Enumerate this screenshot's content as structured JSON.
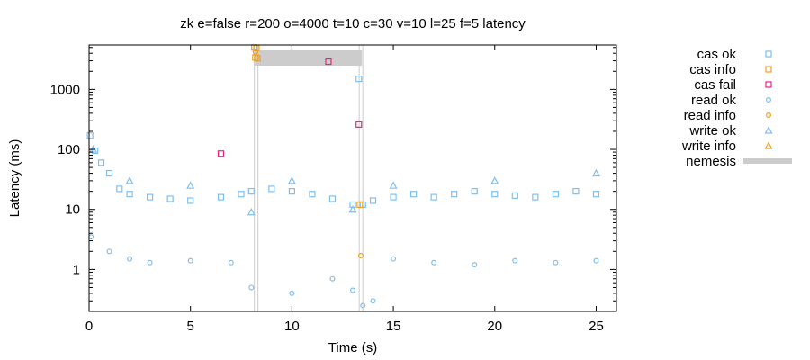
{
  "chart_data": {
    "type": "scatter",
    "title": "zk e=false r=200 o=4000 t=10 c=30 v=10 l=25 f=5 latency",
    "xlabel": "Time (s)",
    "ylabel": "Latency (ms)",
    "xlim": [
      0,
      26
    ],
    "ylim": [
      0.2,
      5500
    ],
    "yscale": "log",
    "x_ticks": [
      0,
      5,
      10,
      15,
      20,
      25
    ],
    "x_tick_labels": [
      "0",
      "5",
      "10",
      "15",
      "20",
      "25"
    ],
    "y_ticks": [
      1,
      10,
      100,
      1000
    ],
    "y_tick_labels": [
      "1",
      "10",
      "100",
      "1000"
    ],
    "legend_position": "outside-right",
    "grid": false,
    "series": [
      {
        "name": "cas ok",
        "marker": "square",
        "color": "#7fbff0",
        "points": [
          [
            0.05,
            170
          ],
          [
            0.3,
            95
          ],
          [
            0.6,
            60
          ],
          [
            1.0,
            40
          ],
          [
            1.5,
            22
          ],
          [
            2.0,
            18
          ],
          [
            3.0,
            16
          ],
          [
            4.0,
            15
          ],
          [
            5.0,
            14
          ],
          [
            6.5,
            16
          ],
          [
            7.5,
            18
          ],
          [
            8.0,
            20
          ],
          [
            9.0,
            22
          ],
          [
            10.0,
            20
          ],
          [
            11.0,
            18
          ],
          [
            12.0,
            15
          ],
          [
            13.0,
            12
          ],
          [
            13.3,
            1500
          ],
          [
            13.5,
            12
          ],
          [
            14.0,
            14
          ],
          [
            15.0,
            16
          ],
          [
            16.0,
            18
          ],
          [
            17.0,
            16
          ],
          [
            18.0,
            18
          ],
          [
            19.0,
            20
          ],
          [
            20.0,
            18
          ],
          [
            21.0,
            17
          ],
          [
            22.0,
            16
          ],
          [
            23.0,
            18
          ],
          [
            24.0,
            20
          ],
          [
            25.0,
            18
          ]
        ]
      },
      {
        "name": "cas info",
        "marker": "square",
        "color": "#f0a020",
        "points": [
          [
            8.15,
            5000
          ],
          [
            8.2,
            3400
          ],
          [
            8.25,
            4900
          ],
          [
            8.3,
            3300
          ],
          [
            13.35,
            12
          ]
        ]
      },
      {
        "name": "cas fail",
        "marker": "square",
        "color": "#f02080",
        "points": [
          [
            6.5,
            85
          ],
          [
            11.8,
            2900
          ],
          [
            13.3,
            260
          ]
        ]
      },
      {
        "name": "read ok",
        "marker": "circle",
        "color": "#7fbff0",
        "points": [
          [
            0.1,
            3.5
          ],
          [
            1.0,
            2.0
          ],
          [
            2.0,
            1.5
          ],
          [
            3.0,
            1.3
          ],
          [
            5.0,
            1.4
          ],
          [
            7.0,
            1.3
          ],
          [
            8.0,
            0.5
          ],
          [
            10.0,
            0.4
          ],
          [
            12.0,
            0.7
          ],
          [
            13.0,
            0.45
          ],
          [
            13.5,
            0.25
          ],
          [
            14.0,
            0.3
          ],
          [
            15.0,
            1.5
          ],
          [
            17.0,
            1.3
          ],
          [
            19.0,
            1.2
          ],
          [
            21.0,
            1.4
          ],
          [
            23.0,
            1.3
          ],
          [
            25.0,
            1.4
          ]
        ]
      },
      {
        "name": "read info",
        "marker": "circle",
        "color": "#f0a020",
        "points": [
          [
            8.2,
            4200
          ],
          [
            13.4,
            1.7
          ]
        ]
      },
      {
        "name": "write ok",
        "marker": "triangle",
        "color": "#7fbff0",
        "points": [
          [
            0.2,
            100
          ],
          [
            2.0,
            30
          ],
          [
            5.0,
            25
          ],
          [
            8.0,
            9
          ],
          [
            10.0,
            30
          ],
          [
            13.0,
            10
          ],
          [
            15.0,
            25
          ],
          [
            20.0,
            30
          ],
          [
            25.0,
            40
          ]
        ]
      },
      {
        "name": "write info",
        "marker": "triangle",
        "color": "#f0a020",
        "points": []
      },
      {
        "name": "nemesis",
        "marker": "band",
        "color": "#cccccc",
        "intervals": [
          [
            8.15,
            13.45
          ]
        ]
      }
    ]
  }
}
